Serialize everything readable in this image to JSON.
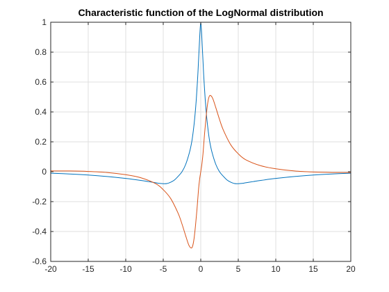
{
  "chart_data": {
    "type": "line",
    "title": "Characteristic function of the LogNormal distribution",
    "xlabel": "",
    "ylabel": "",
    "xlim": [
      -20,
      20
    ],
    "ylim": [
      -0.6,
      1
    ],
    "xticks": [
      -20,
      -15,
      -10,
      -5,
      0,
      5,
      10,
      15,
      20
    ],
    "yticks": [
      -0.6,
      -0.4,
      -0.2,
      0,
      0.2,
      0.4,
      0.6,
      0.8,
      1
    ],
    "grid": true,
    "legend": "none",
    "series": [
      {
        "color": "#0072BD",
        "x": [
          -20,
          -17.5,
          -15,
          -12.5,
          -10,
          -8,
          -7,
          -6,
          -5.5,
          -5,
          -4.5,
          -4,
          -3.5,
          -3,
          -2.5,
          -2,
          -1.5,
          -1.2,
          -1,
          -0.8,
          -0.6,
          -0.4,
          -0.3,
          -0.2,
          -0.1,
          0,
          0.1,
          0.2,
          0.3,
          0.4,
          0.6,
          0.8,
          1,
          1.2,
          1.5,
          2,
          2.5,
          3,
          3.5,
          4,
          4.5,
          5,
          5.5,
          6,
          7,
          8,
          10,
          12.5,
          15,
          17.5,
          20
        ],
        "y": [
          -0.01,
          -0.015,
          -0.022,
          -0.032,
          -0.045,
          -0.058,
          -0.066,
          -0.074,
          -0.078,
          -0.08,
          -0.079,
          -0.07,
          -0.055,
          -0.03,
          0,
          0.05,
          0.13,
          0.2,
          0.27,
          0.36,
          0.48,
          0.64,
          0.74,
          0.84,
          0.94,
          1.0,
          0.94,
          0.84,
          0.74,
          0.64,
          0.48,
          0.36,
          0.27,
          0.2,
          0.13,
          0.05,
          0,
          -0.03,
          -0.055,
          -0.07,
          -0.079,
          -0.08,
          -0.078,
          -0.074,
          -0.066,
          -0.058,
          -0.045,
          -0.032,
          -0.022,
          -0.015,
          -0.01
        ]
      },
      {
        "color": "#D95319",
        "x": [
          -20,
          -17.5,
          -15,
          -12.5,
          -10,
          -8,
          -6,
          -5,
          -4,
          -3,
          -2.5,
          -2,
          -1.6,
          -1.3,
          -1.1,
          -0.9,
          -0.7,
          -0.5,
          -0.3,
          -0.15,
          0,
          0.15,
          0.3,
          0.5,
          0.7,
          0.9,
          1.1,
          1.3,
          1.6,
          2,
          2.5,
          3,
          4,
          5,
          6,
          8,
          10,
          12.5,
          15,
          17.5,
          20
        ],
        "y": [
          0.005,
          0.005,
          0.002,
          -0.005,
          -0.02,
          -0.04,
          -0.08,
          -0.12,
          -0.18,
          -0.28,
          -0.35,
          -0.43,
          -0.49,
          -0.51,
          -0.5,
          -0.45,
          -0.36,
          -0.25,
          -0.12,
          -0.05,
          0,
          0.05,
          0.12,
          0.25,
          0.36,
          0.45,
          0.5,
          0.51,
          0.49,
          0.43,
          0.35,
          0.28,
          0.18,
          0.12,
          0.08,
          0.04,
          0.02,
          0.005,
          -0.002,
          -0.005,
          -0.005
        ]
      }
    ]
  }
}
